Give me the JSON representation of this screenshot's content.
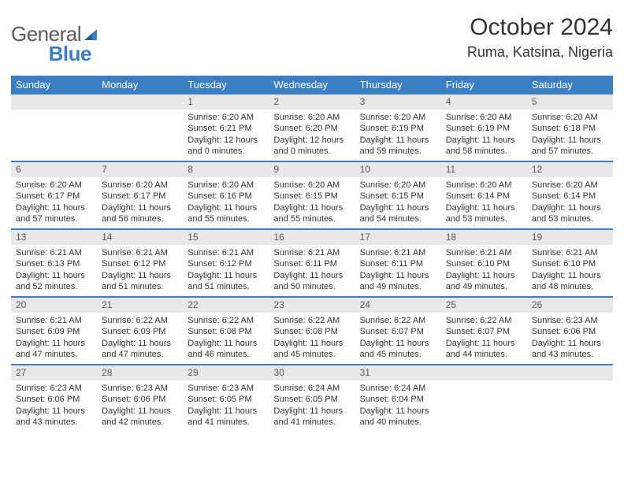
{
  "brand": {
    "part1": "General",
    "part2": "Blue"
  },
  "title": {
    "month": "October 2024",
    "location": "Ruma, Katsina, Nigeria"
  },
  "colors": {
    "header_bg": "#3a7fc4",
    "header_text": "#ffffff",
    "daynum_bg": "#e8e8e8",
    "daynum_text": "#5a5a5a",
    "body_text": "#333333",
    "border": "#3a7fc4",
    "page_bg": "#ffffff"
  },
  "dow": [
    "Sunday",
    "Monday",
    "Tuesday",
    "Wednesday",
    "Thursday",
    "Friday",
    "Saturday"
  ],
  "weeks": [
    [
      null,
      null,
      {
        "n": "1",
        "sunrise": "Sunrise: 6:20 AM",
        "sunset": "Sunset: 6:21 PM",
        "daylight": "Daylight: 12 hours and 0 minutes."
      },
      {
        "n": "2",
        "sunrise": "Sunrise: 6:20 AM",
        "sunset": "Sunset: 6:20 PM",
        "daylight": "Daylight: 12 hours and 0 minutes."
      },
      {
        "n": "3",
        "sunrise": "Sunrise: 6:20 AM",
        "sunset": "Sunset: 6:19 PM",
        "daylight": "Daylight: 11 hours and 59 minutes."
      },
      {
        "n": "4",
        "sunrise": "Sunrise: 6:20 AM",
        "sunset": "Sunset: 6:19 PM",
        "daylight": "Daylight: 11 hours and 58 minutes."
      },
      {
        "n": "5",
        "sunrise": "Sunrise: 6:20 AM",
        "sunset": "Sunset: 6:18 PM",
        "daylight": "Daylight: 11 hours and 57 minutes."
      }
    ],
    [
      {
        "n": "6",
        "sunrise": "Sunrise: 6:20 AM",
        "sunset": "Sunset: 6:17 PM",
        "daylight": "Daylight: 11 hours and 57 minutes."
      },
      {
        "n": "7",
        "sunrise": "Sunrise: 6:20 AM",
        "sunset": "Sunset: 6:17 PM",
        "daylight": "Daylight: 11 hours and 56 minutes."
      },
      {
        "n": "8",
        "sunrise": "Sunrise: 6:20 AM",
        "sunset": "Sunset: 6:16 PM",
        "daylight": "Daylight: 11 hours and 55 minutes."
      },
      {
        "n": "9",
        "sunrise": "Sunrise: 6:20 AM",
        "sunset": "Sunset: 6:15 PM",
        "daylight": "Daylight: 11 hours and 55 minutes."
      },
      {
        "n": "10",
        "sunrise": "Sunrise: 6:20 AM",
        "sunset": "Sunset: 6:15 PM",
        "daylight": "Daylight: 11 hours and 54 minutes."
      },
      {
        "n": "11",
        "sunrise": "Sunrise: 6:20 AM",
        "sunset": "Sunset: 6:14 PM",
        "daylight": "Daylight: 11 hours and 53 minutes."
      },
      {
        "n": "12",
        "sunrise": "Sunrise: 6:20 AM",
        "sunset": "Sunset: 6:14 PM",
        "daylight": "Daylight: 11 hours and 53 minutes."
      }
    ],
    [
      {
        "n": "13",
        "sunrise": "Sunrise: 6:21 AM",
        "sunset": "Sunset: 6:13 PM",
        "daylight": "Daylight: 11 hours and 52 minutes."
      },
      {
        "n": "14",
        "sunrise": "Sunrise: 6:21 AM",
        "sunset": "Sunset: 6:12 PM",
        "daylight": "Daylight: 11 hours and 51 minutes."
      },
      {
        "n": "15",
        "sunrise": "Sunrise: 6:21 AM",
        "sunset": "Sunset: 6:12 PM",
        "daylight": "Daylight: 11 hours and 51 minutes."
      },
      {
        "n": "16",
        "sunrise": "Sunrise: 6:21 AM",
        "sunset": "Sunset: 6:11 PM",
        "daylight": "Daylight: 11 hours and 50 minutes."
      },
      {
        "n": "17",
        "sunrise": "Sunrise: 6:21 AM",
        "sunset": "Sunset: 6:11 PM",
        "daylight": "Daylight: 11 hours and 49 minutes."
      },
      {
        "n": "18",
        "sunrise": "Sunrise: 6:21 AM",
        "sunset": "Sunset: 6:10 PM",
        "daylight": "Daylight: 11 hours and 49 minutes."
      },
      {
        "n": "19",
        "sunrise": "Sunrise: 6:21 AM",
        "sunset": "Sunset: 6:10 PM",
        "daylight": "Daylight: 11 hours and 48 minutes."
      }
    ],
    [
      {
        "n": "20",
        "sunrise": "Sunrise: 6:21 AM",
        "sunset": "Sunset: 6:09 PM",
        "daylight": "Daylight: 11 hours and 47 minutes."
      },
      {
        "n": "21",
        "sunrise": "Sunrise: 6:22 AM",
        "sunset": "Sunset: 6:09 PM",
        "daylight": "Daylight: 11 hours and 47 minutes."
      },
      {
        "n": "22",
        "sunrise": "Sunrise: 6:22 AM",
        "sunset": "Sunset: 6:08 PM",
        "daylight": "Daylight: 11 hours and 46 minutes."
      },
      {
        "n": "23",
        "sunrise": "Sunrise: 6:22 AM",
        "sunset": "Sunset: 6:08 PM",
        "daylight": "Daylight: 11 hours and 45 minutes."
      },
      {
        "n": "24",
        "sunrise": "Sunrise: 6:22 AM",
        "sunset": "Sunset: 6:07 PM",
        "daylight": "Daylight: 11 hours and 45 minutes."
      },
      {
        "n": "25",
        "sunrise": "Sunrise: 6:22 AM",
        "sunset": "Sunset: 6:07 PM",
        "daylight": "Daylight: 11 hours and 44 minutes."
      },
      {
        "n": "26",
        "sunrise": "Sunrise: 6:23 AM",
        "sunset": "Sunset: 6:06 PM",
        "daylight": "Daylight: 11 hours and 43 minutes."
      }
    ],
    [
      {
        "n": "27",
        "sunrise": "Sunrise: 6:23 AM",
        "sunset": "Sunset: 6:06 PM",
        "daylight": "Daylight: 11 hours and 43 minutes."
      },
      {
        "n": "28",
        "sunrise": "Sunrise: 6:23 AM",
        "sunset": "Sunset: 6:06 PM",
        "daylight": "Daylight: 11 hours and 42 minutes."
      },
      {
        "n": "29",
        "sunrise": "Sunrise: 6:23 AM",
        "sunset": "Sunset: 6:05 PM",
        "daylight": "Daylight: 11 hours and 41 minutes."
      },
      {
        "n": "30",
        "sunrise": "Sunrise: 6:24 AM",
        "sunset": "Sunset: 6:05 PM",
        "daylight": "Daylight: 11 hours and 41 minutes."
      },
      {
        "n": "31",
        "sunrise": "Sunrise: 6:24 AM",
        "sunset": "Sunset: 6:04 PM",
        "daylight": "Daylight: 11 hours and 40 minutes."
      },
      null,
      null
    ]
  ]
}
